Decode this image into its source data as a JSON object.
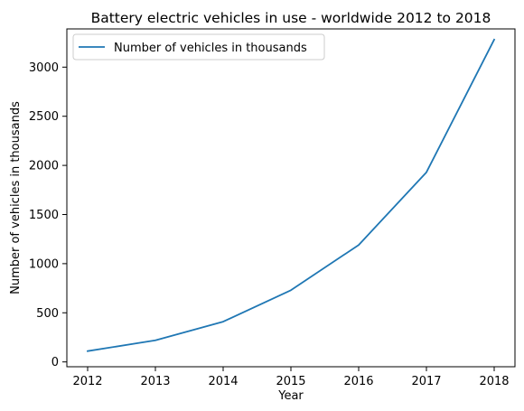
{
  "chart_data": {
    "type": "line",
    "title": "Battery electric vehicles in use - worldwide 2012 to 2018",
    "xlabel": "Year",
    "ylabel": "Number of vehicles in thousands",
    "x": [
      "2012",
      "2013",
      "2014",
      "2015",
      "2016",
      "2017",
      "2018"
    ],
    "series": [
      {
        "name": "Number of vehicles in thousands",
        "values": [
          110,
          220,
          410,
          730,
          1190,
          1930,
          3280
        ],
        "color": "#1f77b4"
      }
    ],
    "yticks": [
      0,
      500,
      1000,
      1500,
      2000,
      2500,
      3000
    ],
    "ylim": [
      -49,
      3389
    ],
    "grid": false,
    "legend_position": "top-left"
  }
}
